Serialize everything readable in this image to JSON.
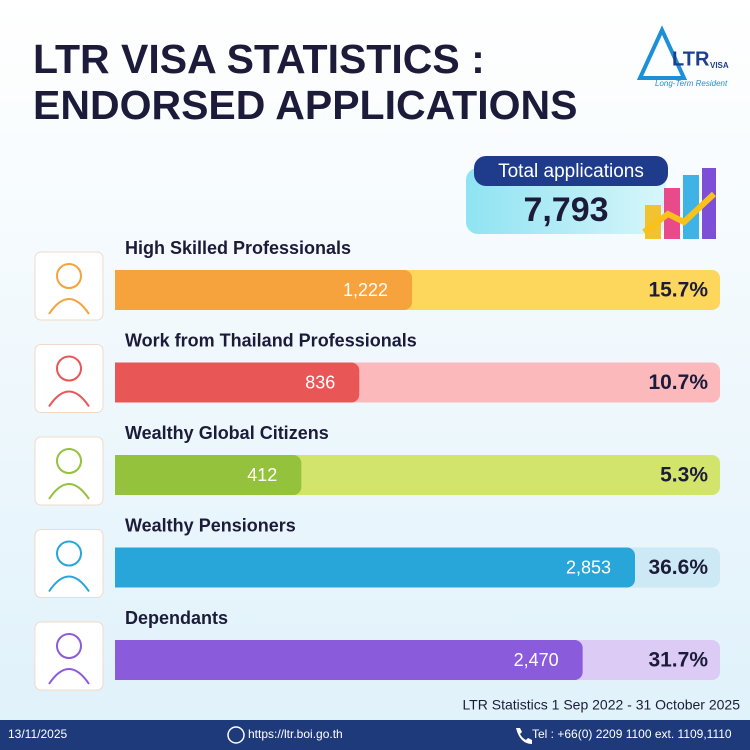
{
  "chart_data": {
    "type": "bar",
    "orientation": "horizontal",
    "title": [
      "LTR VISA STATISTICS :",
      "ENDORSED APPLICATIONS"
    ],
    "logo": {
      "mark": "LTR",
      "sub": "VISA",
      "tagline": "Long-Term Resident"
    },
    "total_title": "Total applications",
    "total": {
      "value": 7793,
      "label": "7,793"
    },
    "categories": [
      "High Skilled Professionals",
      "Work from Thailand Professionals",
      "Wealthy Global Citizens",
      "Wealthy Pensioners",
      "Dependants"
    ],
    "values": [
      1222,
      836,
      412,
      2853,
      2470
    ],
    "value_labels": [
      "1,222",
      "836",
      "412",
      "2,853",
      "2,470"
    ],
    "shares": [
      15.7,
      10.7,
      5.3,
      36.6,
      31.7
    ],
    "share_labels": [
      "15.7%",
      "10.7%",
      "5.3%",
      "36.6%",
      "31.7%"
    ],
    "colors": [
      "#f6a23d",
      "#e85656",
      "#94c23c",
      "#29a6d9",
      "#8a5cdb"
    ],
    "track_colors": [
      "#fdd65c",
      "#fbb9bc",
      "#d3e46c",
      "#cde9f6",
      "#dccbf5"
    ],
    "source": "LTR Statistics 1 Sep 2022 - 31 October 2025",
    "footer": {
      "date": "13/11/2025",
      "url": "https://ltr.boi.go.th",
      "tel": "Tel : +66(0) 2209 1100 ext. 1109,1110"
    }
  }
}
